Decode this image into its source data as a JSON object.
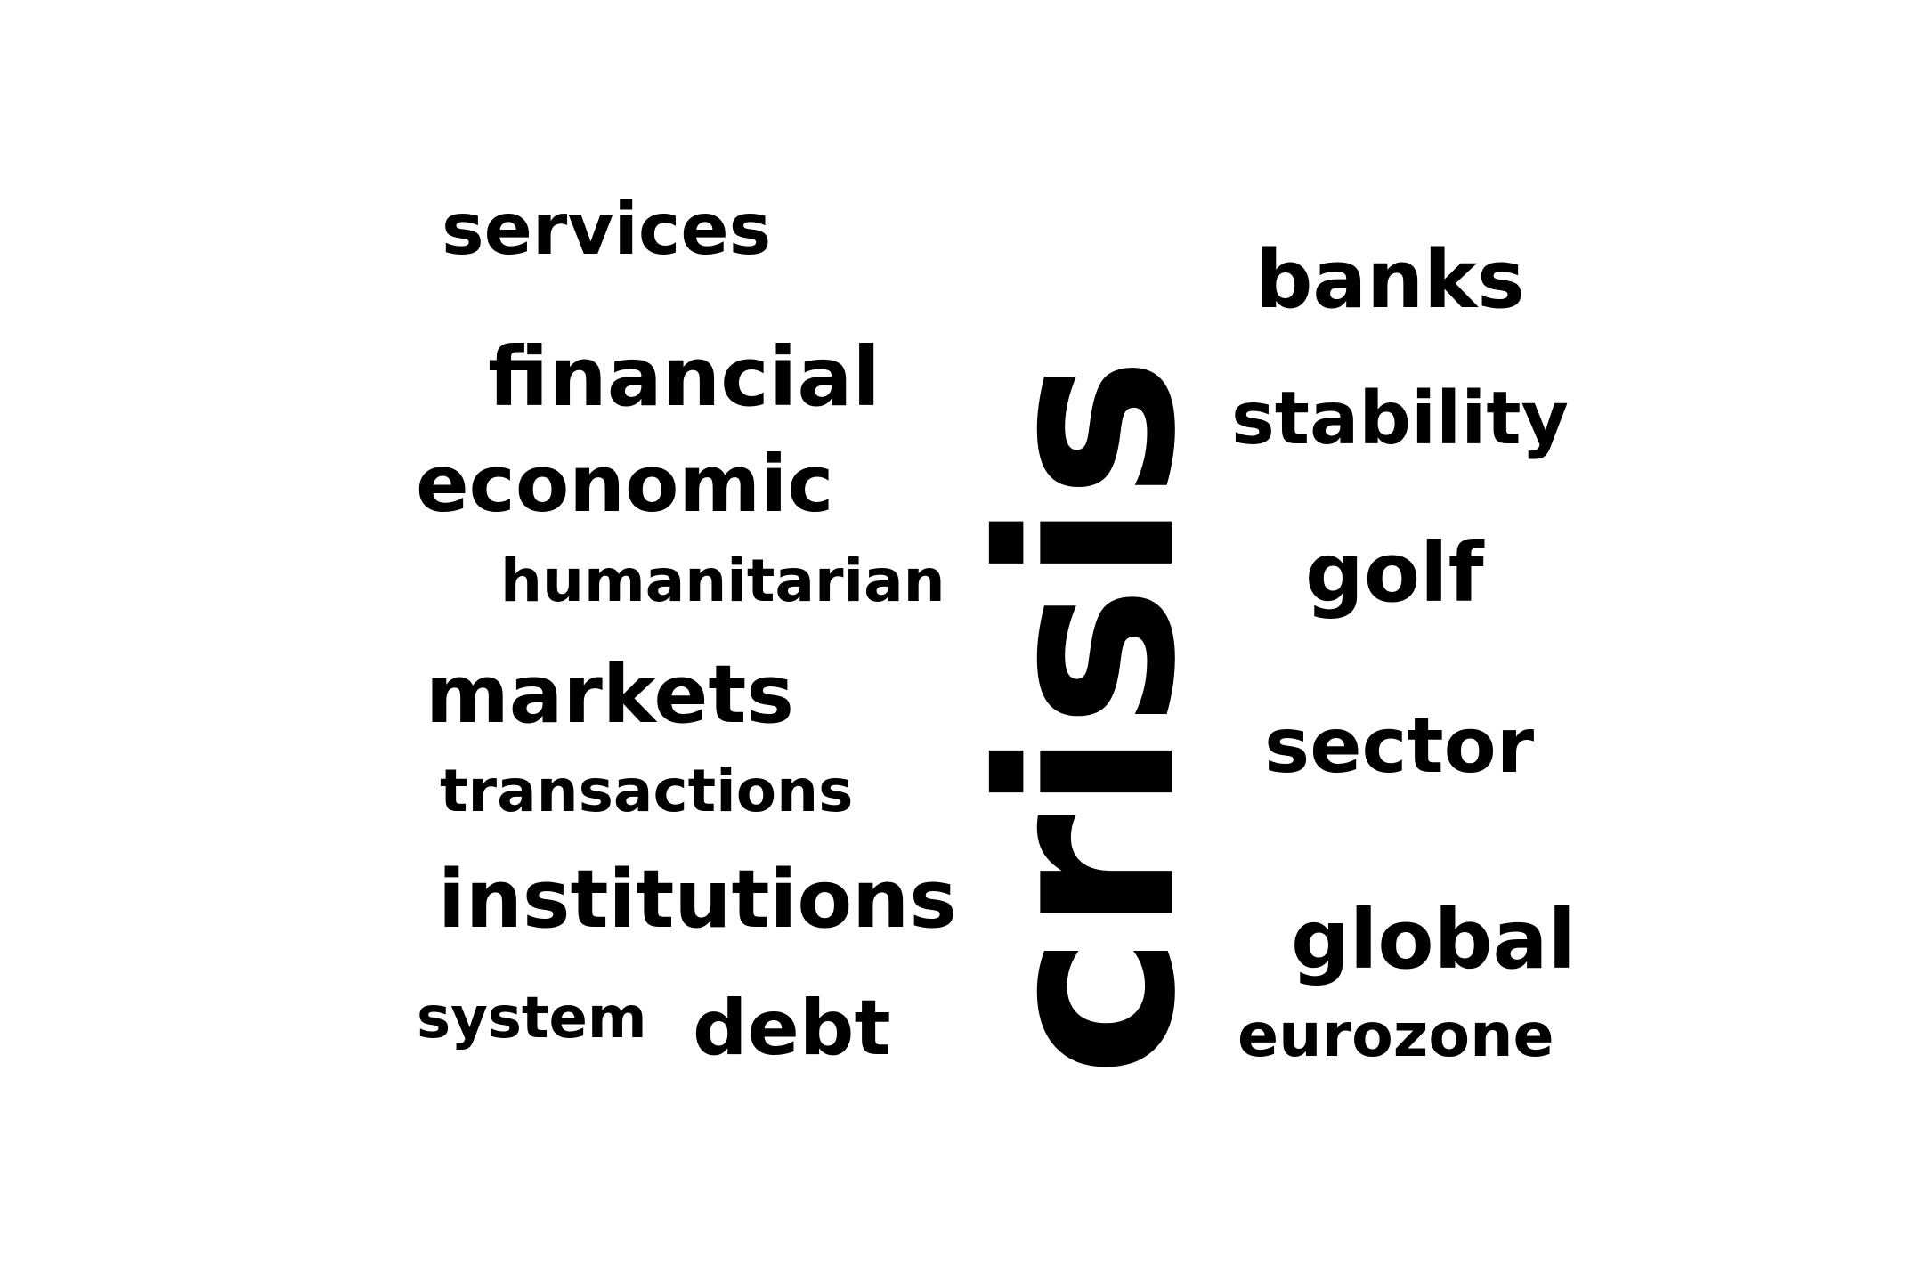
{
  "word_cloud": {
    "words": {
      "crisis": "crisis",
      "services": "services",
      "financial": "financial",
      "economic": "economic",
      "humanitarian": "humanitarian",
      "markets": "markets",
      "transactions": "transactions",
      "institutions": "institutions",
      "system": "system",
      "debt": "debt",
      "banks": "banks",
      "stability": "stability",
      "golf": "golf",
      "sector": "sector",
      "global": "global",
      "eurozone": "eurozone"
    },
    "text_color": "#000000",
    "background_color": "#ffffff",
    "orientation_of_crisis": "vertical"
  }
}
